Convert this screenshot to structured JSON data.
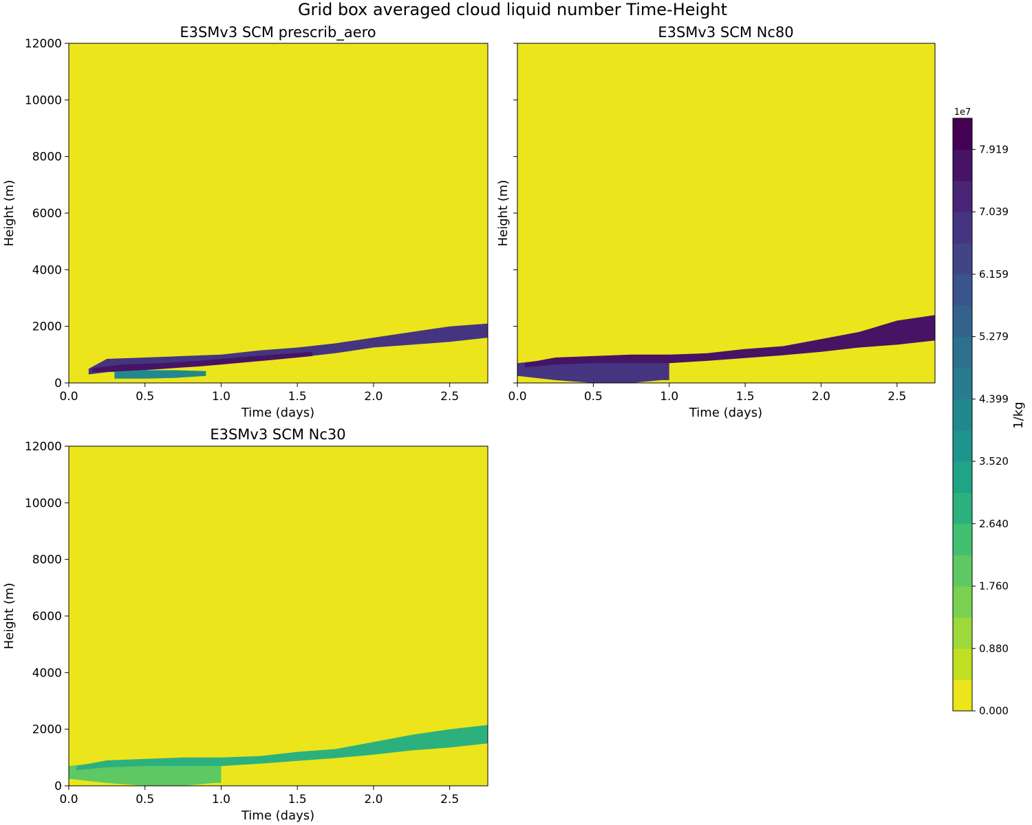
{
  "figure": {
    "title": "Grid box averaged cloud liquid number Time-Height"
  },
  "colorbar": {
    "label": "1/kg",
    "exponent": "1e7",
    "tick_labels": [
      "0.000",
      "0.880",
      "1.760",
      "2.640",
      "3.520",
      "4.399",
      "5.279",
      "6.159",
      "7.039",
      "7.919"
    ],
    "levels": [
      0,
      0.44,
      0.88,
      1.32,
      1.76,
      2.2,
      2.64,
      3.08,
      3.52,
      3.96,
      4.399,
      4.839,
      5.279,
      5.719,
      6.159,
      6.599,
      7.039,
      7.479,
      7.919,
      8.359
    ],
    "colors": [
      "#ece51b",
      "#c2df23",
      "#9dd93b",
      "#79d151",
      "#5ec962",
      "#43bf71",
      "#2cb17e",
      "#20a386",
      "#1f948c",
      "#23888e",
      "#287c8e",
      "#2d708e",
      "#33638d",
      "#3a548c",
      "#414487",
      "#453581",
      "#482576",
      "#471365",
      "#440154"
    ]
  },
  "chart_data": [
    {
      "type": "heatmap",
      "title": "E3SMv3 SCM prescrib_aero",
      "xlabel": "Time (days)",
      "ylabel": "Height (m)",
      "xlim": [
        0,
        2.75
      ],
      "ylim": [
        0,
        12000
      ],
      "xticks": [
        "0.0",
        "0.5",
        "1.0",
        "1.5",
        "2.0",
        "2.5"
      ],
      "yticks": [
        "0",
        "2000",
        "4000",
        "6000",
        "8000",
        "10000",
        "12000"
      ],
      "units": "1/kg (x1e7)",
      "background_value": 0,
      "cloud_layers": [
        {
          "time": [
            0.13,
            0.25,
            0.5,
            0.75,
            1.0,
            1.25,
            1.5,
            1.75,
            2.0,
            2.25,
            2.5,
            2.75
          ],
          "base_m": [
            300,
            380,
            450,
            550,
            650,
            800,
            900,
            1050,
            1250,
            1350,
            1450,
            1600
          ],
          "top_m": [
            500,
            850,
            900,
            950,
            1000,
            1150,
            1250,
            1400,
            1600,
            1800,
            2000,
            2100
          ],
          "value": 6.8
        },
        {
          "time": [
            0.15,
            0.35,
            0.6,
            0.85,
            1.1,
            1.35,
            1.6
          ],
          "base_m": [
            380,
            420,
            500,
            580,
            700,
            820,
            950
          ],
          "top_m": [
            520,
            650,
            700,
            780,
            900,
            1000,
            1100
          ],
          "value": 7.9
        },
        {
          "time": [
            0.3,
            0.5,
            0.7,
            0.9
          ],
          "base_m": [
            150,
            150,
            180,
            250
          ],
          "top_m": [
            400,
            450,
            450,
            420
          ],
          "value": 4.0
        }
      ]
    },
    {
      "type": "heatmap",
      "title": "E3SMv3 SCM Nc80",
      "xlabel": "Time (days)",
      "ylabel": "Height (m)",
      "xlim": [
        0,
        2.75
      ],
      "ylim": [
        0,
        12000
      ],
      "xticks": [
        "0.0",
        "0.5",
        "1.0",
        "1.5",
        "2.0",
        "2.5"
      ],
      "yticks": [
        "0",
        "2000",
        "4000",
        "6000",
        "8000",
        "10000",
        "12000"
      ],
      "units": "1/kg (x1e7)",
      "background_value": 0,
      "cloud_layers": [
        {
          "time": [
            0.0,
            0.25,
            0.5,
            0.75,
            0.95,
            1.0
          ],
          "base_m": [
            250,
            100,
            0,
            0,
            100,
            100
          ],
          "top_m": [
            700,
            850,
            900,
            950,
            950,
            900
          ],
          "value": 6.6
        },
        {
          "time": [
            0.05,
            0.25,
            0.5,
            0.75,
            1.0,
            1.25,
            1.5,
            1.75,
            2.0,
            2.25,
            2.5,
            2.75
          ],
          "base_m": [
            550,
            650,
            700,
            700,
            700,
            780,
            880,
            980,
            1100,
            1250,
            1350,
            1500
          ],
          "top_m": [
            700,
            900,
            950,
            1000,
            1000,
            1050,
            1200,
            1300,
            1550,
            1800,
            2200,
            2400
          ],
          "value": 7.9
        }
      ]
    },
    {
      "type": "heatmap",
      "title": "E3SMv3 SCM Nc30",
      "xlabel": "Time (days)",
      "ylabel": "Height (m)",
      "xlim": [
        0,
        2.75
      ],
      "ylim": [
        0,
        12000
      ],
      "xticks": [
        "0.0",
        "0.5",
        "1.0",
        "1.5",
        "2.0",
        "2.5"
      ],
      "yticks": [
        "0",
        "2000",
        "4000",
        "6000",
        "8000",
        "10000",
        "12000"
      ],
      "units": "1/kg (x1e7)",
      "background_value": 0,
      "cloud_layers": [
        {
          "time": [
            0.0,
            0.25,
            0.5,
            0.75,
            0.95,
            1.0
          ],
          "base_m": [
            250,
            100,
            0,
            0,
            100,
            100
          ],
          "top_m": [
            700,
            850,
            900,
            950,
            950,
            900
          ],
          "value": 2.0
        },
        {
          "time": [
            0.05,
            0.25,
            0.5,
            0.75,
            1.0,
            1.25,
            1.5,
            1.75,
            2.0,
            2.25,
            2.5,
            2.75
          ],
          "base_m": [
            550,
            650,
            700,
            700,
            700,
            780,
            880,
            980,
            1100,
            1250,
            1350,
            1500
          ],
          "top_m": [
            700,
            900,
            950,
            1000,
            1000,
            1050,
            1200,
            1300,
            1550,
            1800,
            2000,
            2150
          ],
          "value": 2.8
        }
      ]
    }
  ]
}
